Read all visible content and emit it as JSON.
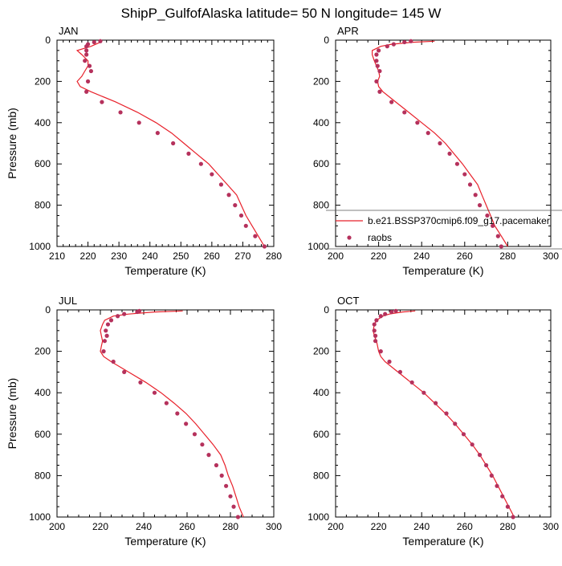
{
  "title": "ShipP_GulfofAlaska  latitude= 50 N longitude= 145 W",
  "colors": {
    "model_line": "#e8202a",
    "obs_dots": "#b5315c",
    "axis": "#000000"
  },
  "legend": {
    "model_label": "b.e21.BSSP370cmip6.f09_g17.pacemaker",
    "obs_label": "raobs"
  },
  "chart_data": [
    {
      "type": "line",
      "panel": "JAN",
      "title": "JAN",
      "xlabel": "Temperature (K)",
      "ylabel": "Pressure (mb)",
      "xlim": [
        210,
        280
      ],
      "ylim": [
        1000,
        0
      ],
      "xticks": [
        210,
        220,
        230,
        240,
        250,
        260,
        270,
        280
      ],
      "yticks": [
        0,
        200,
        400,
        600,
        800,
        1000
      ],
      "model": {
        "pressure": [
          10,
          30,
          50,
          70,
          100,
          125,
          150,
          175,
          200,
          225,
          250,
          300,
          350,
          400,
          450,
          500,
          550,
          600,
          650,
          700,
          750,
          800,
          850,
          900,
          950,
          1000
        ],
        "temperature": [
          224,
          221,
          216.5,
          218,
          220,
          220,
          219,
          218,
          216.5,
          217.5,
          221,
          229,
          236,
          242,
          247,
          251,
          255,
          259,
          262,
          265,
          268,
          269.5,
          271,
          273,
          275,
          277
        ]
      },
      "obs": {
        "pressure": [
          5,
          10,
          20,
          30,
          50,
          70,
          100,
          125,
          150,
          200,
          250,
          300,
          350,
          400,
          450,
          500,
          550,
          600,
          650,
          700,
          750,
          800,
          850,
          900,
          950,
          1000
        ],
        "temperature": [
          224,
          222,
          220,
          219.5,
          219.5,
          219.5,
          219,
          220.5,
          221,
          220,
          219.5,
          224.5,
          230.5,
          236.5,
          242.5,
          247.5,
          252.5,
          256.5,
          260,
          263,
          265.5,
          267.5,
          269.5,
          271,
          274,
          277
        ]
      }
    },
    {
      "type": "line",
      "panel": "APR",
      "title": "APR",
      "xlabel": "Temperature (K)",
      "ylabel": "",
      "xlim": [
        200,
        300
      ],
      "ylim": [
        1000,
        0
      ],
      "xticks": [
        200,
        220,
        240,
        260,
        280,
        300
      ],
      "yticks": [
        0,
        200,
        400,
        600,
        800,
        1000
      ],
      "model": {
        "pressure": [
          5,
          10,
          20,
          30,
          50,
          70,
          100,
          125,
          150,
          175,
          200,
          225,
          250,
          300,
          350,
          400,
          450,
          500,
          550,
          600,
          650,
          700,
          750,
          800,
          850,
          900,
          950,
          1000
        ],
        "temperature": [
          246,
          236,
          226,
          221,
          217,
          217,
          218,
          219,
          220,
          220.5,
          219.5,
          220,
          222,
          228,
          234,
          240,
          246,
          251,
          255,
          259,
          262.5,
          266,
          268,
          270,
          272,
          274,
          277,
          280
        ]
      },
      "obs": {
        "pressure": [
          5,
          10,
          20,
          30,
          50,
          70,
          100,
          125,
          150,
          200,
          250,
          300,
          350,
          400,
          450,
          500,
          550,
          600,
          650,
          700,
          750,
          800,
          850,
          900,
          950,
          1000
        ],
        "temperature": [
          235,
          232,
          227,
          224,
          220,
          219,
          219,
          219.5,
          220.5,
          219,
          220.5,
          226,
          232,
          238,
          243,
          248.5,
          253,
          256.5,
          260,
          262.5,
          265,
          267,
          270.5,
          273,
          275.5,
          277
        ]
      }
    },
    {
      "type": "line",
      "panel": "JUL",
      "title": "JUL",
      "xlabel": "Temperature (K)",
      "ylabel": "Pressure (mb)",
      "xlim": [
        200,
        300
      ],
      "ylim": [
        1000,
        0
      ],
      "xticks": [
        200,
        220,
        240,
        260,
        280,
        300
      ],
      "yticks": [
        0,
        200,
        400,
        600,
        800,
        1000
      ],
      "model": {
        "pressure": [
          5,
          10,
          20,
          30,
          50,
          70,
          100,
          125,
          150,
          175,
          200,
          225,
          250,
          300,
          350,
          400,
          450,
          500,
          550,
          600,
          650,
          700,
          750,
          800,
          850,
          900,
          950,
          1000
        ],
        "temperature": [
          258,
          245,
          233,
          226,
          222,
          221,
          220,
          220.5,
          221,
          220.5,
          220,
          221.5,
          225,
          233,
          241,
          248,
          254,
          259.5,
          264,
          268,
          272,
          275.5,
          277.5,
          279,
          281,
          282.5,
          284,
          286
        ]
      },
      "obs": {
        "pressure": [
          5,
          10,
          20,
          30,
          50,
          70,
          100,
          125,
          150,
          200,
          250,
          300,
          350,
          400,
          450,
          500,
          550,
          600,
          650,
          700,
          750,
          800,
          850,
          900,
          950,
          1000
        ],
        "temperature": [
          238,
          237,
          231,
          228,
          225,
          223.5,
          222.5,
          223,
          222,
          221.5,
          226,
          231,
          238.5,
          245,
          250.5,
          255.5,
          259.5,
          263.5,
          267,
          270,
          273.5,
          276,
          278,
          280,
          281.5,
          283.5
        ]
      }
    },
    {
      "type": "line",
      "panel": "OCT",
      "title": "OCT",
      "xlabel": "Temperature (K)",
      "ylabel": "",
      "xlim": [
        200,
        300
      ],
      "ylim": [
        1000,
        0
      ],
      "xticks": [
        200,
        220,
        240,
        260,
        280,
        300
      ],
      "yticks": [
        0,
        200,
        400,
        600,
        800,
        1000
      ],
      "model": {
        "pressure": [
          5,
          10,
          20,
          30,
          50,
          70,
          100,
          125,
          150,
          175,
          200,
          225,
          250,
          300,
          350,
          400,
          450,
          500,
          550,
          600,
          650,
          700,
          750,
          800,
          850,
          900,
          950,
          1000
        ],
        "temperature": [
          237,
          231,
          225,
          222,
          219,
          218,
          217.5,
          218,
          219,
          219.5,
          220,
          221,
          223,
          229,
          235,
          241,
          246,
          251,
          255.5,
          259.5,
          263.5,
          267,
          270,
          273,
          275.5,
          278,
          280.5,
          283
        ]
      },
      "obs": {
        "pressure": [
          5,
          10,
          20,
          30,
          50,
          70,
          100,
          125,
          150,
          200,
          250,
          300,
          350,
          400,
          450,
          500,
          550,
          600,
          650,
          700,
          750,
          800,
          850,
          900,
          950,
          1000
        ],
        "temperature": [
          228,
          226,
          223,
          221,
          219,
          218,
          218,
          218.5,
          218.5,
          221,
          225,
          230,
          235.5,
          241,
          246.5,
          251.5,
          255.5,
          259.5,
          263.5,
          267,
          270,
          272.5,
          275,
          277.5,
          280,
          282.5
        ]
      }
    }
  ]
}
